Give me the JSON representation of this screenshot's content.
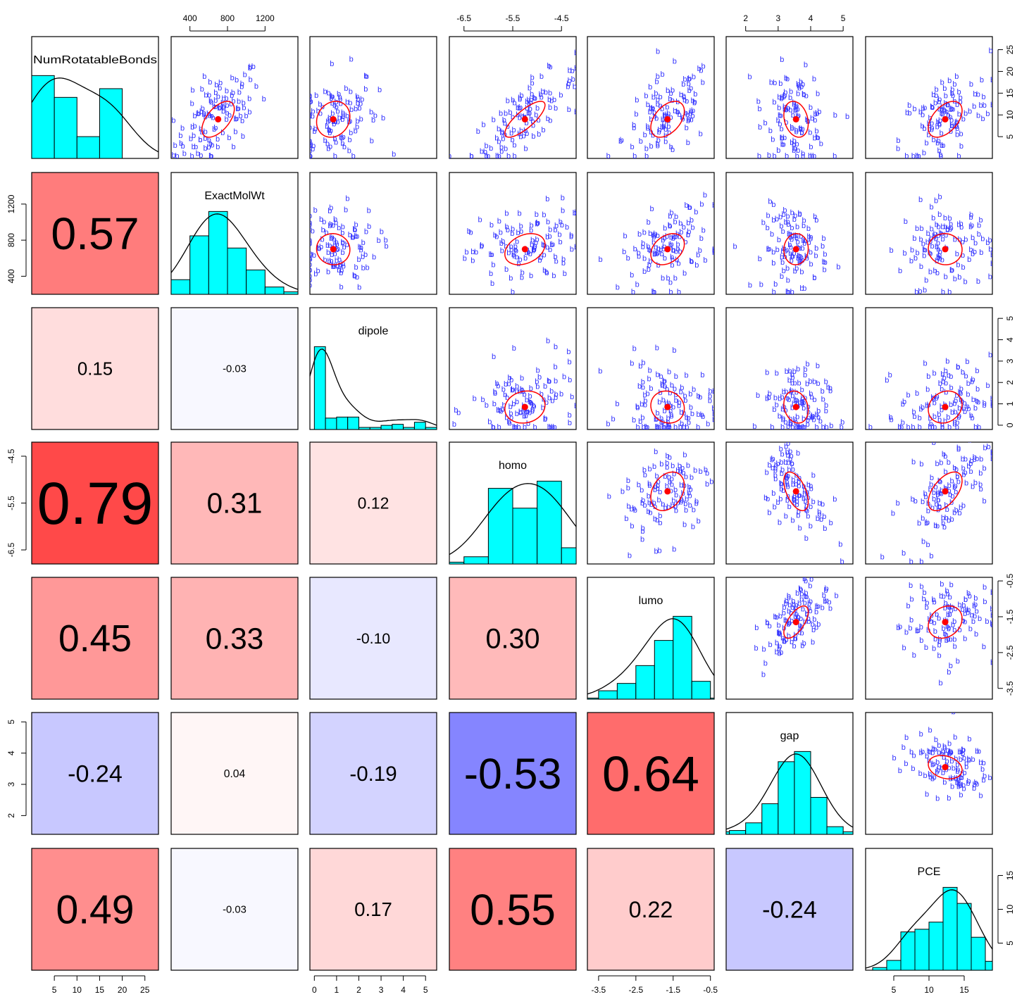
{
  "chart_data": {
    "type": "scatter-matrix",
    "variables": [
      "NumRotatableBonds",
      "ExactMolWt",
      "dipole",
      "homo",
      "lumo",
      "gap",
      "PCE"
    ],
    "ranges": {
      "NumRotatableBonds": [
        0,
        28
      ],
      "ExactMolWt": [
        200,
        1550
      ],
      "dipole": [
        -0.2,
        5.5
      ],
      "homo": [
        -6.8,
        -4.2
      ],
      "lumo": [
        -3.8,
        -0.4
      ],
      "gap": [
        1.4,
        5.3
      ],
      "PCE": [
        1,
        19
      ]
    },
    "ticks": {
      "NumRotatableBonds": [
        5,
        10,
        15,
        20,
        25
      ],
      "ExactMolWt": [
        400,
        800,
        1200
      ],
      "dipole": [
        0,
        1,
        2,
        3,
        4,
        5
      ],
      "homo": [
        -6.5,
        -5.5,
        -4.5
      ],
      "lumo": [
        -3.5,
        -2.5,
        -1.5,
        -0.5
      ],
      "gap": [
        2,
        3,
        4,
        5
      ],
      "PCE": [
        5,
        10,
        15
      ]
    },
    "tick_labels": {
      "NumRotatableBonds": [
        "5",
        "10",
        "15",
        "20",
        "25"
      ],
      "ExactMolWt": [
        "400",
        "800",
        "1200"
      ],
      "dipole": [
        "0",
        "1",
        "2",
        "3",
        "4",
        "5"
      ],
      "homo": [
        "-6.5",
        "-5.5",
        "-4.5"
      ],
      "lumo": [
        "-3.5",
        "-2.5",
        "-1.5",
        "-0.5"
      ],
      "gap": [
        "2",
        "3",
        "4",
        "5"
      ],
      "PCE": [
        "5",
        "10",
        "15"
      ]
    },
    "histograms": {
      "NumRotatableBonds": {
        "edges": [
          0,
          5,
          10,
          15,
          20,
          25
        ],
        "counts": [
          19,
          14,
          5,
          16,
          0
        ]
      },
      "ExactMolWt": {
        "edges": [
          200,
          400,
          600,
          800,
          1000,
          1200,
          1400,
          1600
        ],
        "counts": [
          6,
          24,
          34,
          19,
          10,
          3,
          1
        ]
      },
      "dipole": {
        "edges": [
          0,
          0.5,
          1,
          1.5,
          2,
          2.5,
          3,
          3.5,
          4,
          4.5,
          5,
          5.5
        ],
        "counts": [
          80,
          11,
          12,
          12,
          2,
          2,
          4,
          5,
          2,
          7,
          2
        ]
      },
      "homo": {
        "edges": [
          -7,
          -6.5,
          -6,
          -5.5,
          -5,
          -4.5,
          -4
        ],
        "counts": [
          1,
          4,
          42,
          31,
          46,
          9
        ]
      },
      "lumo": {
        "edges": [
          -4,
          -3.5,
          -3,
          -2.5,
          -2,
          -1.5,
          -1,
          -0.5,
          0
        ],
        "counts": [
          1,
          8,
          15,
          32,
          56,
          79,
          17,
          1
        ]
      },
      "gap": {
        "edges": [
          1,
          1.5,
          2,
          2.5,
          3,
          3.5,
          4,
          4.5,
          5,
          5.5
        ],
        "counts": [
          2,
          3,
          9,
          24,
          57,
          65,
          29,
          6,
          2
        ]
      },
      "PCE": {
        "edges": [
          0,
          2,
          4,
          6,
          8,
          10,
          12,
          14,
          16,
          18,
          20
        ],
        "counts": [
          0,
          3,
          11,
          43,
          46,
          54,
          93,
          75,
          37,
          10
        ]
      }
    },
    "correlations": [
      {
        "row": "ExactMolWt",
        "col": "NumRotatableBonds",
        "label": "0.57",
        "value": 0.57
      },
      {
        "row": "dipole",
        "col": "NumRotatableBonds",
        "label": "0.15",
        "value": 0.15
      },
      {
        "row": "dipole",
        "col": "ExactMolWt",
        "label": "-0.03",
        "value": -0.03
      },
      {
        "row": "homo",
        "col": "NumRotatableBonds",
        "label": "0.79",
        "value": 0.79
      },
      {
        "row": "homo",
        "col": "ExactMolWt",
        "label": "0.31",
        "value": 0.31
      },
      {
        "row": "homo",
        "col": "dipole",
        "label": "0.12",
        "value": 0.12
      },
      {
        "row": "lumo",
        "col": "NumRotatableBonds",
        "label": "0.45",
        "value": 0.45
      },
      {
        "row": "lumo",
        "col": "ExactMolWt",
        "label": "0.33",
        "value": 0.33
      },
      {
        "row": "lumo",
        "col": "dipole",
        "label": "-0.10",
        "value": -0.1
      },
      {
        "row": "lumo",
        "col": "homo",
        "label": "0.30",
        "value": 0.3
      },
      {
        "row": "gap",
        "col": "NumRotatableBonds",
        "label": "-0.24",
        "value": -0.24
      },
      {
        "row": "gap",
        "col": "ExactMolWt",
        "label": "0.04",
        "value": 0.04
      },
      {
        "row": "gap",
        "col": "dipole",
        "label": "-0.19",
        "value": -0.19
      },
      {
        "row": "gap",
        "col": "homo",
        "label": "-0.53",
        "value": -0.53
      },
      {
        "row": "gap",
        "col": "lumo",
        "label": "0.64",
        "value": 0.64
      },
      {
        "row": "PCE",
        "col": "NumRotatableBonds",
        "label": "0.49",
        "value": 0.49
      },
      {
        "row": "PCE",
        "col": "ExactMolWt",
        "label": "-0.03",
        "value": -0.03
      },
      {
        "row": "PCE",
        "col": "dipole",
        "label": "0.17",
        "value": 0.17
      },
      {
        "row": "PCE",
        "col": "homo",
        "label": "0.55",
        "value": 0.55
      },
      {
        "row": "PCE",
        "col": "lumo",
        "label": "0.22",
        "value": 0.22
      },
      {
        "row": "PCE",
        "col": "gap",
        "label": "-0.24",
        "value": -0.24
      }
    ],
    "means": {
      "NumRotatableBonds": 9,
      "ExactMolWt": 700,
      "dipole": 0.85,
      "homo": -5.25,
      "lumo": -1.65,
      "gap": 3.55,
      "PCE": 12.3
    },
    "sds": {
      "NumRotatableBonds": 5.5,
      "ExactMolWt": 230,
      "dipole": 1.0,
      "homo": 0.55,
      "lumo": 0.6,
      "gap": 0.5,
      "PCE": 3.2
    },
    "point_symbol": "b",
    "colors": {
      "histogram": "#00ffff",
      "points": "#3333ff",
      "ellipse": "#ff0000",
      "positive_max": "#ff0000",
      "negative_max": "#0000ff"
    }
  }
}
